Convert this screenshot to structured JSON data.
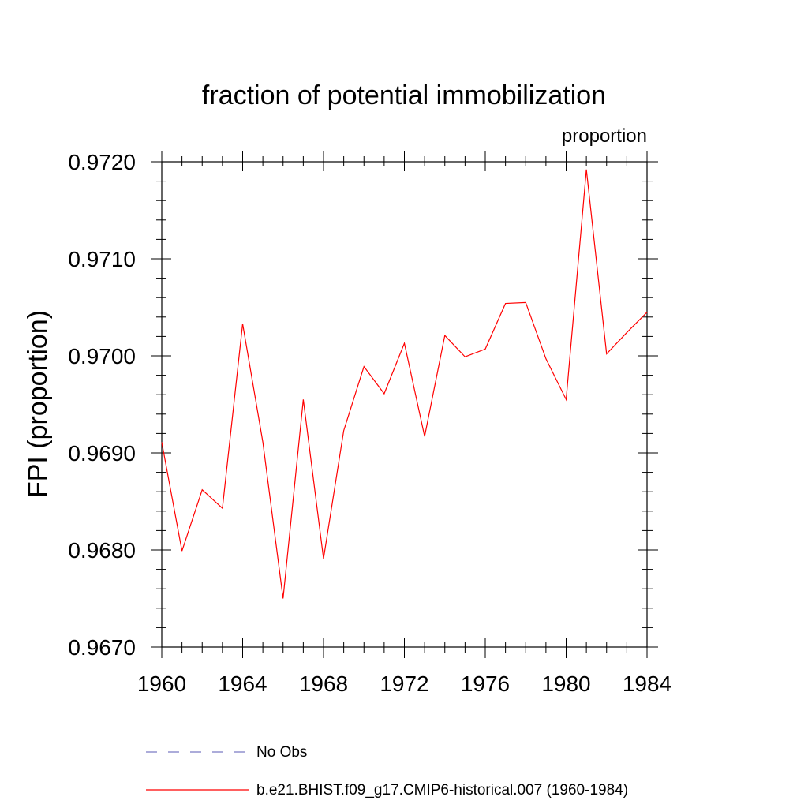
{
  "chart_data": {
    "type": "line",
    "title": "fraction of potential immobilization",
    "subtitle": "proportion",
    "xlabel": "",
    "ylabel": "FPI  (proportion)",
    "xlim": [
      1960,
      1984
    ],
    "ylim": [
      0.967,
      0.972
    ],
    "x_ticks": [
      1960,
      1964,
      1968,
      1972,
      1976,
      1980,
      1984
    ],
    "x_tick_labels": [
      "1960",
      "1964",
      "1968",
      "1972",
      "1976",
      "1980",
      "1984"
    ],
    "y_ticks": [
      0.967,
      0.968,
      0.969,
      0.97,
      0.971,
      0.972
    ],
    "y_tick_labels": [
      "0.9670",
      "0.9680",
      "0.9690",
      "0.9700",
      "0.9710",
      "0.9720"
    ],
    "grid": false,
    "legend_position": "bottom",
    "series": [
      {
        "name": "No Obs",
        "color": "#7b7bc4",
        "dashed": true,
        "x": [],
        "values": []
      },
      {
        "name": "b.e21.BHIST.f09_g17.CMIP6-historical.007 (1960-1984)",
        "color": "#ff0000",
        "dashed": false,
        "x": [
          1960,
          1961,
          1962,
          1963,
          1964,
          1965,
          1966,
          1967,
          1968,
          1969,
          1970,
          1971,
          1972,
          1973,
          1974,
          1975,
          1976,
          1977,
          1978,
          1979,
          1980,
          1981,
          1982,
          1983,
          1984
        ],
        "values": [
          0.96911,
          0.96799,
          0.96862,
          0.96843,
          0.97033,
          0.96911,
          0.9675,
          0.96955,
          0.96791,
          0.96923,
          0.96989,
          0.96961,
          0.97013,
          0.96917,
          0.97021,
          0.96999,
          0.97007,
          0.97054,
          0.97055,
          0.96997,
          0.96955,
          0.97192,
          0.97002,
          0.97024,
          0.97045
        ]
      }
    ]
  }
}
